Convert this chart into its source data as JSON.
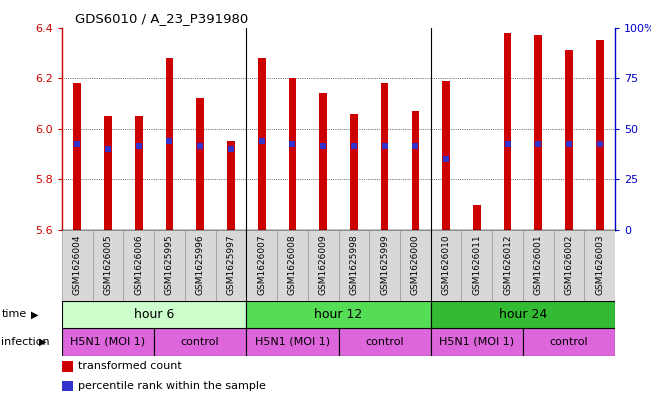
{
  "title": "GDS6010 / A_23_P391980",
  "samples": [
    "GSM1626004",
    "GSM1626005",
    "GSM1626006",
    "GSM1625995",
    "GSM1625996",
    "GSM1625997",
    "GSM1626007",
    "GSM1626008",
    "GSM1626009",
    "GSM1625998",
    "GSM1625999",
    "GSM1626000",
    "GSM1626010",
    "GSM1626011",
    "GSM1626012",
    "GSM1626001",
    "GSM1626002",
    "GSM1626003"
  ],
  "bar_heights": [
    6.18,
    6.05,
    6.05,
    6.28,
    6.12,
    5.95,
    6.28,
    6.2,
    6.14,
    6.06,
    6.18,
    6.07,
    6.19,
    5.7,
    6.38,
    6.37,
    6.31,
    6.35
  ],
  "blue_dots_y": [
    5.94,
    5.92,
    5.93,
    5.95,
    5.93,
    5.92,
    5.95,
    5.94,
    5.93,
    5.93,
    5.93,
    5.93,
    5.88,
    null,
    5.94,
    5.94,
    5.94,
    5.94
  ],
  "ymin": 5.6,
  "ymax": 6.4,
  "yticks": [
    5.6,
    5.8,
    6.0,
    6.2,
    6.4
  ],
  "right_yticks": [
    0,
    25,
    50,
    75,
    100
  ],
  "bar_color": "#cc0000",
  "blue_color": "#3333cc",
  "bar_width": 0.25,
  "time_data": [
    {
      "label": "hour 6",
      "start": 0,
      "end": 6,
      "color": "#ccffcc"
    },
    {
      "label": "hour 12",
      "start": 6,
      "end": 12,
      "color": "#55dd55"
    },
    {
      "label": "hour 24",
      "start": 12,
      "end": 18,
      "color": "#33bb33"
    }
  ],
  "infect_data": [
    {
      "label": "H5N1 (MOI 1)",
      "start": 0,
      "end": 3,
      "color": "#dd66dd"
    },
    {
      "label": "control",
      "start": 3,
      "end": 6,
      "color": "#dd66dd"
    },
    {
      "label": "H5N1 (MOI 1)",
      "start": 6,
      "end": 9,
      "color": "#dd66dd"
    },
    {
      "label": "control",
      "start": 9,
      "end": 12,
      "color": "#dd66dd"
    },
    {
      "label": "H5N1 (MOI 1)",
      "start": 12,
      "end": 15,
      "color": "#dd66dd"
    },
    {
      "label": "control",
      "start": 15,
      "end": 18,
      "color": "#dd66dd"
    }
  ],
  "bg_color": "#ffffff"
}
